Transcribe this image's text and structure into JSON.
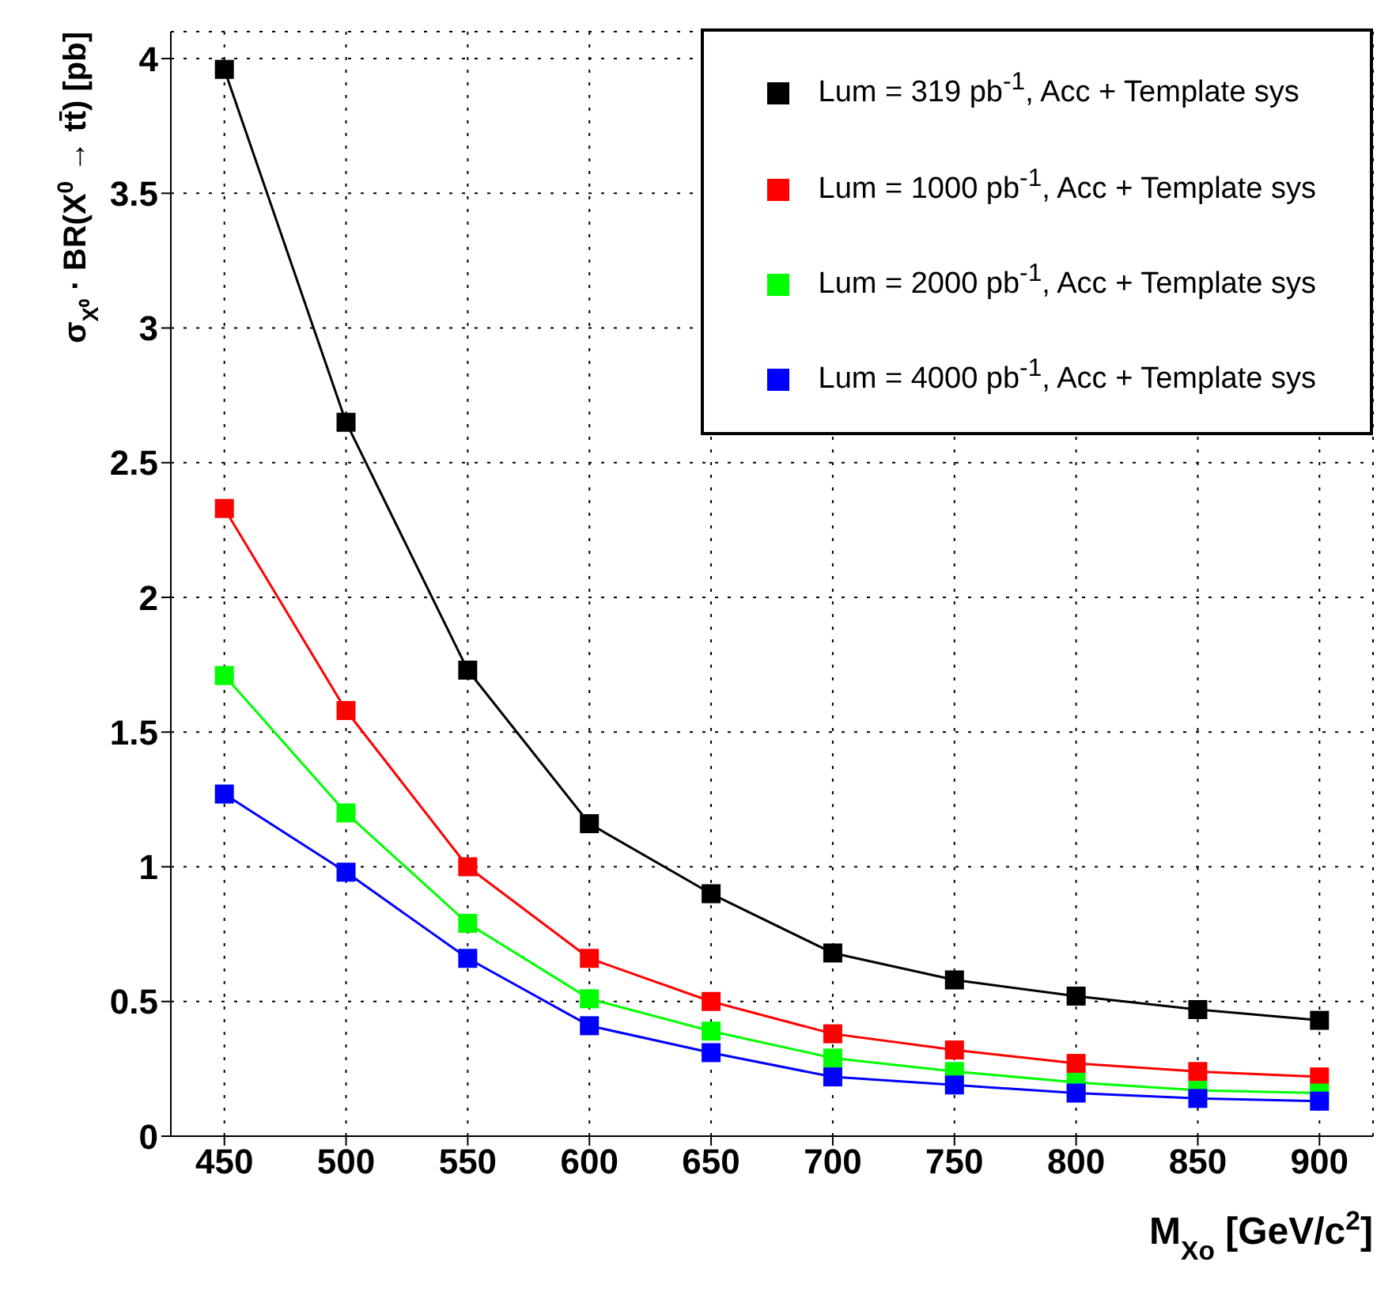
{
  "chart_data": {
    "type": "line",
    "xlabel": "M$_{Xo}$ [GeV/c$^{2}$]",
    "ylabel": "σ$_{X⁰}$ · BR(X$^{0}$ → tt̄) [pb]",
    "x": [
      450,
      500,
      550,
      600,
      650,
      700,
      750,
      800,
      850,
      900
    ],
    "xlim": [
      428,
      922
    ],
    "xticks": [
      450,
      500,
      550,
      600,
      650,
      700,
      750,
      800,
      850,
      900
    ],
    "ylim": [
      0,
      4.1
    ],
    "yticks": [
      0,
      0.5,
      1,
      1.5,
      2,
      2.5,
      3,
      3.5,
      4
    ],
    "grid": true,
    "legend": "top right",
    "marker": "square",
    "line_style": "solid",
    "series": [
      {
        "name": "Lum = 319 pb$^{-1}$, Acc + Template sys",
        "color": "#000000",
        "values": [
          3.96,
          2.65,
          1.73,
          1.16,
          0.9,
          0.68,
          0.58,
          0.52,
          0.47,
          0.43
        ]
      },
      {
        "name": "Lum = 1000 pb$^{-1}$, Acc + Template sys",
        "color": "#ff0000",
        "values": [
          2.33,
          1.58,
          1.0,
          0.66,
          0.5,
          0.38,
          0.32,
          0.27,
          0.24,
          0.22
        ]
      },
      {
        "name": "Lum = 2000 pb$^{-1}$, Acc + Template sys",
        "color": "#00ff00",
        "values": [
          1.71,
          1.2,
          0.79,
          0.51,
          0.39,
          0.29,
          0.24,
          0.2,
          0.17,
          0.16
        ]
      },
      {
        "name": "Lum = 4000 pb$^{-1}$, Acc + Template sys",
        "color": "#0000ff",
        "values": [
          1.27,
          0.98,
          0.66,
          0.41,
          0.31,
          0.22,
          0.19,
          0.16,
          0.14,
          0.13
        ]
      }
    ]
  }
}
